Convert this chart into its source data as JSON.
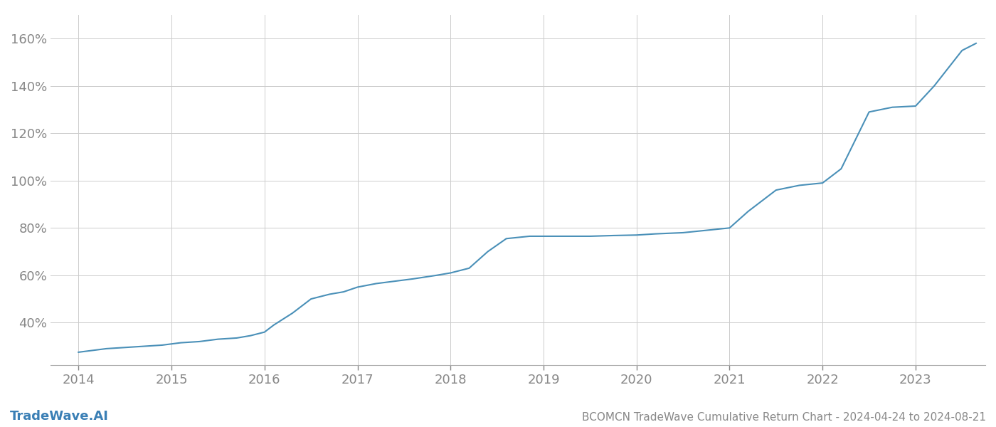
{
  "title": "BCOMCN TradeWave Cumulative Return Chart - 2024-04-24 to 2024-08-21",
  "watermark": "TradeWave.AI",
  "line_color": "#4a90b8",
  "background_color": "#ffffff",
  "grid_color": "#cccccc",
  "x_tick_color": "#888888",
  "y_tick_color": "#888888",
  "title_color": "#888888",
  "watermark_color": "#3a7fb5",
  "x_years": [
    2014,
    2015,
    2016,
    2017,
    2018,
    2019,
    2020,
    2021,
    2022,
    2023
  ],
  "data_x": [
    2014.0,
    2014.1,
    2014.2,
    2014.3,
    2014.5,
    2014.7,
    2014.9,
    2015.0,
    2015.1,
    2015.3,
    2015.5,
    2015.7,
    2015.85,
    2016.0,
    2016.1,
    2016.3,
    2016.5,
    2016.7,
    2016.85,
    2017.0,
    2017.2,
    2017.4,
    2017.6,
    2017.85,
    2018.0,
    2018.2,
    2018.4,
    2018.6,
    2018.85,
    2019.0,
    2019.2,
    2019.5,
    2019.75,
    2020.0,
    2020.2,
    2020.5,
    2020.75,
    2021.0,
    2021.2,
    2021.5,
    2021.75,
    2022.0,
    2022.2,
    2022.5,
    2022.75,
    2023.0,
    2023.2,
    2023.5,
    2023.65
  ],
  "data_y": [
    27.5,
    28.0,
    28.5,
    29.0,
    29.5,
    30.0,
    30.5,
    31.0,
    31.5,
    32.0,
    33.0,
    33.5,
    34.5,
    36.0,
    39.0,
    44.0,
    50.0,
    52.0,
    53.0,
    55.0,
    56.5,
    57.5,
    58.5,
    60.0,
    61.0,
    63.0,
    70.0,
    75.5,
    76.5,
    76.5,
    76.5,
    76.5,
    76.8,
    77.0,
    77.5,
    78.0,
    79.0,
    80.0,
    87.0,
    96.0,
    98.0,
    99.0,
    105.0,
    129.0,
    131.0,
    131.5,
    140.0,
    155.0,
    158.0
  ],
  "ylim": [
    22,
    170
  ],
  "xlim": [
    2013.7,
    2023.75
  ],
  "yticks": [
    40,
    60,
    80,
    100,
    120,
    140,
    160
  ],
  "ytick_labels": [
    "40%",
    "60%",
    "80%",
    "100%",
    "120%",
    "140%",
    "160%"
  ],
  "line_width": 1.5,
  "title_fontsize": 11,
  "tick_fontsize": 13,
  "watermark_fontsize": 13
}
